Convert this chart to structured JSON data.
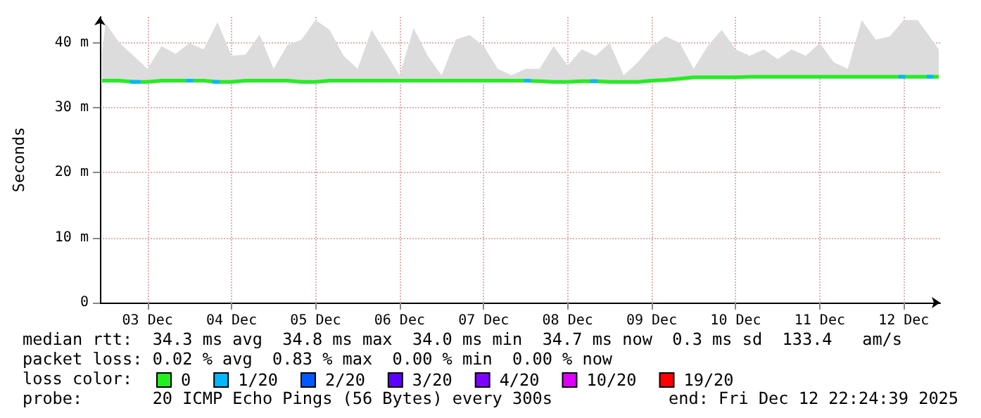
{
  "chart_data": {
    "type": "line",
    "ylabel": "Seconds",
    "annotations": [
      "median rtt:  34.3 ms avg  34.8 ms max  34.0 ms min  34.7 ms now  0.3 ms sd  133.4   am/s",
      "packet loss: 0.02 % avg  0.83 % max  0.00 % min  0.00 % now",
      "loss color:",
      "probe:       20 ICMP Echo Pings (56 Bytes) every 300s",
      "end: Fri Dec 12 22:24:39 2025"
    ],
    "x": [
      "2025-12-02T23:00",
      "2025-12-03T00:00",
      "2025-12-03T04:00",
      "2025-12-03T08:00",
      "2025-12-03T12:00",
      "2025-12-03T16:00",
      "2025-12-03T20:00",
      "2025-12-04T00:00",
      "2025-12-04T04:00",
      "2025-12-04T08:00",
      "2025-12-04T12:00",
      "2025-12-04T16:00",
      "2025-12-04T20:00",
      "2025-12-05T00:00",
      "2025-12-05T04:00",
      "2025-12-05T08:00",
      "2025-12-05T12:00",
      "2025-12-05T16:00",
      "2025-12-05T20:00",
      "2025-12-06T00:00",
      "2025-12-06T04:00",
      "2025-12-06T08:00",
      "2025-12-06T12:00",
      "2025-12-06T16:00",
      "2025-12-06T20:00",
      "2025-12-07T00:00",
      "2025-12-07T04:00",
      "2025-12-07T08:00",
      "2025-12-07T12:00",
      "2025-12-07T16:00",
      "2025-12-07T20:00",
      "2025-12-08T00:00",
      "2025-12-08T04:00",
      "2025-12-08T08:00",
      "2025-12-08T12:00",
      "2025-12-08T16:00",
      "2025-12-08T20:00",
      "2025-12-09T00:00",
      "2025-12-09T04:00",
      "2025-12-09T08:00",
      "2025-12-09T12:00",
      "2025-12-09T16:00",
      "2025-12-09T20:00",
      "2025-12-10T00:00",
      "2025-12-10T04:00",
      "2025-12-10T08:00",
      "2025-12-10T12:00",
      "2025-12-10T16:00",
      "2025-12-10T20:00",
      "2025-12-11T00:00",
      "2025-12-11T04:00",
      "2025-12-11T08:00",
      "2025-12-11T12:00",
      "2025-12-11T16:00",
      "2025-12-11T20:00",
      "2025-12-12T00:00",
      "2025-12-12T04:00",
      "2025-12-12T08:00",
      "2025-12-12T12:00",
      "2025-12-12T16:00",
      "2025-12-12T20:00",
      "2025-12-12T22:00"
    ],
    "series": [
      {
        "name": "0",
        "color": "#22ee22",
        "values": [
          34.2,
          34.2,
          34.2,
          34.0,
          34.0,
          34.2,
          34.2,
          34.2,
          34.2,
          34.0,
          34.0,
          34.2,
          34.2,
          34.2,
          34.2,
          34.0,
          34.0,
          34.2,
          34.2,
          34.2,
          34.2,
          34.2,
          34.2,
          34.2,
          34.2,
          34.2,
          34.2,
          34.2,
          34.2,
          34.2,
          34.2,
          34.2,
          34.1,
          34.0,
          34.0,
          34.1,
          34.1,
          34.0,
          34.0,
          34.0,
          34.2,
          34.3,
          34.5,
          34.7,
          34.7,
          34.7,
          34.7,
          34.8,
          34.8,
          34.8,
          34.8,
          34.8,
          34.8,
          34.8,
          34.8,
          34.8,
          34.8,
          34.8,
          34.8,
          34.8,
          34.8,
          34.8
        ],
        "lower": [
          33.8,
          33.8,
          33.8,
          33.6,
          33.6,
          33.8,
          33.8,
          33.8,
          33.8,
          33.6,
          33.6,
          33.8,
          33.8,
          33.8,
          33.8,
          33.6,
          33.6,
          33.8,
          33.8,
          33.8,
          33.8,
          33.8,
          33.8,
          33.8,
          33.8,
          33.8,
          33.8,
          33.8,
          33.8,
          33.8,
          33.8,
          33.8,
          33.7,
          33.6,
          33.6,
          33.7,
          33.7,
          33.6,
          33.6,
          33.6,
          33.8,
          33.9,
          34.1,
          34.3,
          34.3,
          34.3,
          34.3,
          34.4,
          34.4,
          34.4,
          34.4,
          34.4,
          34.4,
          34.4,
          34.4,
          34.4,
          34.4,
          34.4,
          34.4,
          34.4,
          34.4,
          34.4
        ],
        "upper": [
          38.5,
          43.0,
          40.0,
          38.0,
          36.0,
          39.5,
          38.3,
          40.0,
          39.0,
          43.2,
          38.0,
          38.2,
          41.3,
          36.0,
          39.7,
          40.5,
          43.5,
          42.0,
          38.0,
          36.0,
          42.0,
          38.5,
          35.0,
          42.3,
          38.0,
          35.0,
          40.5,
          41.2,
          39.5,
          36.0,
          35.0,
          36.0,
          36.0,
          39.5,
          36.5,
          39.0,
          38.0,
          40.0,
          35.0,
          37.0,
          39.5,
          41.0,
          40.0,
          36.0,
          39.5,
          42.0,
          39.0,
          38.0,
          39.0,
          37.5,
          39.0,
          38.0,
          40.0,
          37.0,
          36.0,
          43.5,
          40.5,
          41.0,
          43.5,
          43.5,
          40.5,
          39.0
        ]
      },
      {
        "name": "1/20",
        "color": "#00b8ff",
        "x": [
          "2025-12-03T07:00",
          "2025-12-03T10:00",
          "2025-12-03T12:00",
          "2025-12-03T23:00",
          "2025-12-04T01:00",
          "2025-12-04T04:00",
          "2025-12-04T06:30",
          "2025-12-04T08:30",
          "2025-12-04T12:00",
          "2025-12-07T23:30",
          "2025-12-08T01:30",
          "2025-12-08T12:00",
          "2025-12-08T18:30",
          "2025-12-08T20:30",
          "2025-12-09T12:00",
          "2025-12-12T10:30",
          "2025-12-12T12:30",
          "2025-12-12T15:00",
          "2025-12-12T18:30",
          "2025-12-12T20:30"
        ],
        "values": [
          34.0,
          34.0,
          null,
          34.2,
          34.2,
          null,
          34.0,
          34.0,
          null,
          34.2,
          34.2,
          null,
          34.1,
          34.1,
          null,
          34.8,
          34.8,
          null,
          34.8,
          34.8
        ]
      },
      {
        "name": "2/20",
        "color": "#0059ff",
        "values": [
          null,
          null,
          null,
          null,
          null,
          null,
          null,
          null,
          null,
          null,
          null,
          null,
          null,
          null,
          null,
          null,
          null,
          null,
          null,
          null,
          null,
          null,
          null,
          null,
          null,
          null,
          null,
          null,
          null,
          null,
          null,
          null,
          null,
          null,
          null,
          null,
          null,
          null,
          null,
          null,
          null,
          null,
          null,
          null,
          null,
          null,
          null,
          null,
          null,
          null,
          null,
          null,
          null,
          null,
          null,
          null,
          null,
          null,
          null,
          null,
          null,
          null
        ]
      },
      {
        "name": "3/20",
        "color": "#5e00ff",
        "values": [
          null,
          null,
          null,
          null,
          null,
          null,
          null,
          null,
          null,
          null,
          null,
          null,
          null,
          null,
          null,
          null,
          null,
          null,
          null,
          null,
          null,
          null,
          null,
          null,
          null,
          null,
          null,
          null,
          null,
          null,
          null,
          null,
          null,
          null,
          null,
          null,
          null,
          null,
          null,
          null,
          null,
          null,
          null,
          null,
          null,
          null,
          null,
          null,
          null,
          null,
          null,
          null,
          null,
          null,
          null,
          null,
          null,
          null,
          null,
          null,
          null,
          null
        ]
      },
      {
        "name": "4/20",
        "color": "#7e00ff",
        "values": [
          null,
          null,
          null,
          null,
          null,
          null,
          null,
          null,
          null,
          null,
          null,
          null,
          null,
          null,
          null,
          null,
          null,
          null,
          null,
          null,
          null,
          null,
          null,
          null,
          null,
          null,
          null,
          null,
          null,
          null,
          null,
          null,
          null,
          null,
          null,
          null,
          null,
          null,
          null,
          null,
          null,
          null,
          null,
          null,
          null,
          null,
          null,
          null,
          null,
          null,
          null,
          null,
          null,
          null,
          null,
          null,
          null,
          null,
          null,
          null,
          null,
          null
        ]
      },
      {
        "name": "10/20",
        "color": "#dd00ff",
        "values": [
          null,
          null,
          null,
          null,
          null,
          null,
          null,
          null,
          null,
          null,
          null,
          null,
          null,
          null,
          null,
          null,
          null,
          null,
          null,
          null,
          null,
          null,
          null,
          null,
          null,
          null,
          null,
          null,
          null,
          null,
          null,
          null,
          null,
          null,
          null,
          null,
          null,
          null,
          null,
          null,
          null,
          null,
          null,
          null,
          null,
          null,
          null,
          null,
          null,
          null,
          null,
          null,
          null,
          null,
          null,
          null,
          null,
          null,
          null,
          null,
          null,
          null
        ]
      },
      {
        "name": "19/20",
        "color": "#ff0000",
        "values": [
          null,
          null,
          null,
          null,
          null,
          null,
          null,
          null,
          null,
          null,
          null,
          null,
          null,
          null,
          null,
          null,
          null,
          null,
          null,
          null,
          null,
          null,
          null,
          null,
          null,
          null,
          null,
          null,
          null,
          null,
          null,
          null,
          null,
          null,
          null,
          null,
          null,
          null,
          null,
          null,
          null,
          null,
          null,
          null,
          null,
          null,
          null,
          null,
          null,
          null,
          null,
          null,
          null,
          null,
          null,
          null,
          null,
          null,
          null,
          null,
          null,
          null
        ]
      }
    ],
    "xlim": [
      "2025-12-02T22:24",
      "2025-12-12T22:24"
    ],
    "xticks": [
      {
        "value": "2025-12-03T12:00",
        "label": "03 Dec"
      },
      {
        "value": "2025-12-04T12:00",
        "label": "04 Dec"
      },
      {
        "value": "2025-12-05T12:00",
        "label": "05 Dec"
      },
      {
        "value": "2025-12-06T12:00",
        "label": "06 Dec"
      },
      {
        "value": "2025-12-07T12:00",
        "label": "07 Dec"
      },
      {
        "value": "2025-12-08T12:00",
        "label": "08 Dec"
      },
      {
        "value": "2025-12-09T12:00",
        "label": "09 Dec"
      },
      {
        "value": "2025-12-10T12:00",
        "label": "10 Dec"
      },
      {
        "value": "2025-12-11T12:00",
        "label": "11 Dec"
      },
      {
        "value": "2025-12-12T12:00",
        "label": "12 Dec"
      }
    ],
    "ylim": [
      0,
      44
    ],
    "yticks": [
      0,
      {
        "value": 10,
        "label": "10 m"
      },
      {
        "value": 20,
        "label": "20 m"
      },
      {
        "value": 30,
        "label": "30 m"
      },
      {
        "value": 40,
        "label": "40 m"
      }
    ],
    "grid": true,
    "legend": "bottom",
    "marker": "none",
    "line_style": "solid"
  }
}
